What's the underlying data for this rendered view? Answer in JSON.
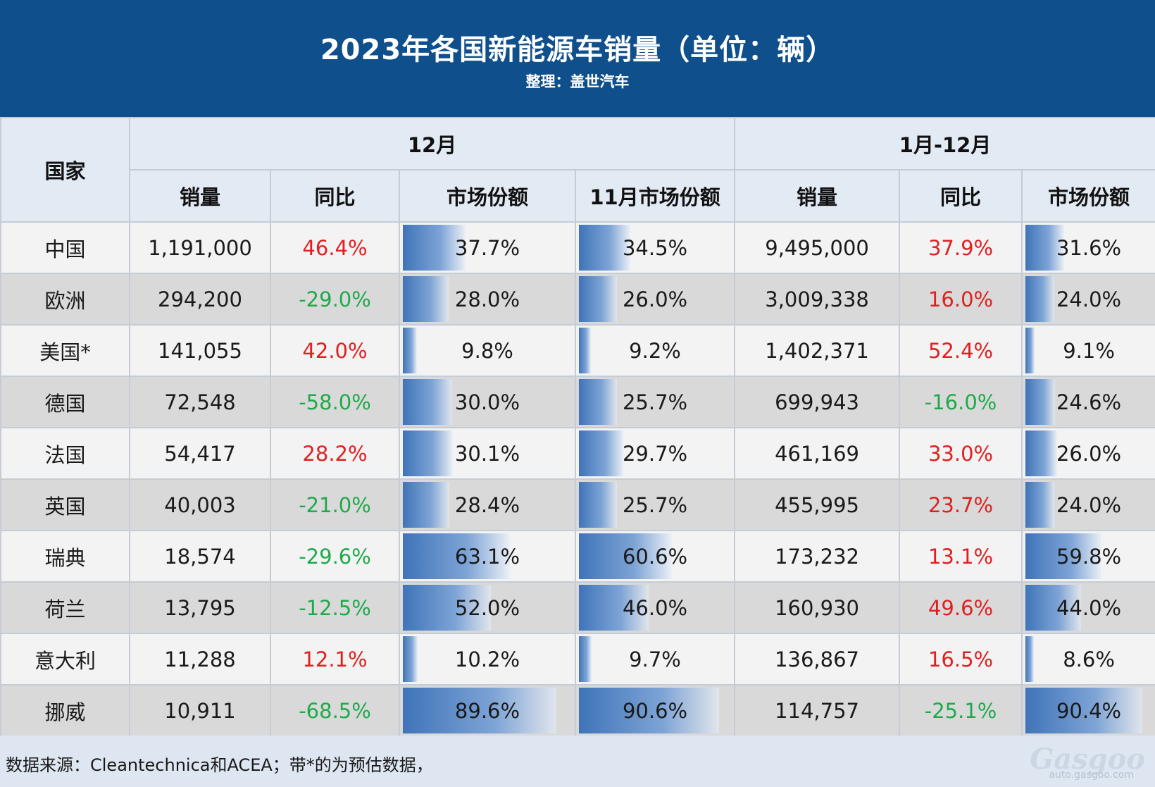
{
  "header": {
    "title": "2023年各国新能源车销量（单位：辆）",
    "subtitle": "整理：盖世汽车"
  },
  "table": {
    "country_header": "国家",
    "group_dec": "12月",
    "group_year": "1月-12月",
    "columns": [
      "销量",
      "同比",
      "市场份额",
      "11月市场份额",
      "销量",
      "同比",
      "市场份额"
    ],
    "rows": [
      {
        "country": "中国",
        "dec_sales": "1,191,000",
        "dec_yoy": "46.4%",
        "dec_share": "37.7%",
        "nov_share": "34.5%",
        "year_sales": "9,495,000",
        "year_yoy": "37.9%",
        "year_share": "31.6%"
      },
      {
        "country": "欧洲",
        "dec_sales": "294,200",
        "dec_yoy": "-29.0%",
        "dec_share": "28.0%",
        "nov_share": "26.0%",
        "year_sales": "3,009,338",
        "year_yoy": "16.0%",
        "year_share": "24.0%"
      },
      {
        "country": "美国*",
        "dec_sales": "141,055",
        "dec_yoy": "42.0%",
        "dec_share": "9.8%",
        "nov_share": "9.2%",
        "year_sales": "1,402,371",
        "year_yoy": "52.4%",
        "year_share": "9.1%"
      },
      {
        "country": "德国",
        "dec_sales": "72,548",
        "dec_yoy": "-58.0%",
        "dec_share": "30.0%",
        "nov_share": "25.7%",
        "year_sales": "699,943",
        "year_yoy": "-16.0%",
        "year_share": "24.6%"
      },
      {
        "country": "法国",
        "dec_sales": "54,417",
        "dec_yoy": "28.2%",
        "dec_share": "30.1%",
        "nov_share": "29.7%",
        "year_sales": "461,169",
        "year_yoy": "33.0%",
        "year_share": "26.0%"
      },
      {
        "country": "英国",
        "dec_sales": "40,003",
        "dec_yoy": "-21.0%",
        "dec_share": "28.4%",
        "nov_share": "25.7%",
        "year_sales": "455,995",
        "year_yoy": "23.7%",
        "year_share": "24.0%"
      },
      {
        "country": "瑞典",
        "dec_sales": "18,574",
        "dec_yoy": "-29.6%",
        "dec_share": "63.1%",
        "nov_share": "60.6%",
        "year_sales": "173,232",
        "year_yoy": "13.1%",
        "year_share": "59.8%"
      },
      {
        "country": "荷兰",
        "dec_sales": "13,795",
        "dec_yoy": "-12.5%",
        "dec_share": "52.0%",
        "nov_share": "46.0%",
        "year_sales": "160,930",
        "year_yoy": "49.6%",
        "year_share": "44.0%"
      },
      {
        "country": "意大利",
        "dec_sales": "11,288",
        "dec_yoy": "12.1%",
        "dec_share": "10.2%",
        "nov_share": "9.7%",
        "year_sales": "136,867",
        "year_yoy": "16.5%",
        "year_share": "8.6%"
      },
      {
        "country": "挪威",
        "dec_sales": "10,911",
        "dec_yoy": "-68.5%",
        "dec_share": "89.6%",
        "nov_share": "90.6%",
        "year_sales": "114,757",
        "year_yoy": "-25.1%",
        "year_share": "90.4%"
      }
    ]
  },
  "footer": {
    "note": "数据来源：Cleantechnica和ACEA；带*的为预估数据，",
    "logo": "Gasgoo",
    "logo_url": "auto.gasgoo.com"
  },
  "colors": {
    "header_bg": "#0f4f8c",
    "positive": "#e02020",
    "negative": "#1faa4a",
    "bar": "#3f74b8"
  }
}
